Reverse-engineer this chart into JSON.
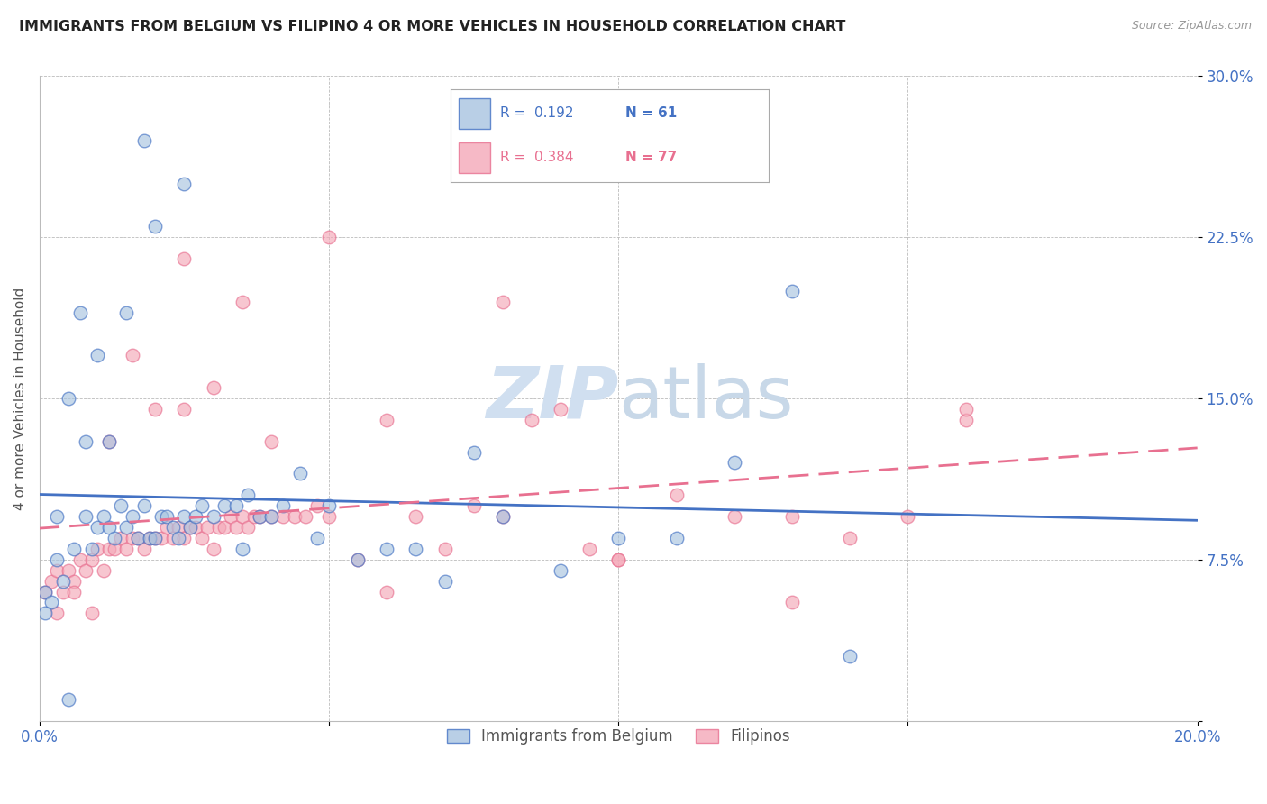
{
  "title": "IMMIGRANTS FROM BELGIUM VS FILIPINO 4 OR MORE VEHICLES IN HOUSEHOLD CORRELATION CHART",
  "source": "Source: ZipAtlas.com",
  "ylabel": "4 or more Vehicles in Household",
  "xlim": [
    0.0,
    0.2
  ],
  "ylim": [
    0.0,
    0.3
  ],
  "xticks": [
    0.0,
    0.05,
    0.1,
    0.15,
    0.2
  ],
  "yticks": [
    0.0,
    0.075,
    0.15,
    0.225,
    0.3
  ],
  "xticklabels": [
    "0.0%",
    "",
    "",
    "",
    "20.0%"
  ],
  "yticklabels": [
    "",
    "7.5%",
    "15.0%",
    "22.5%",
    "30.0%"
  ],
  "legend1_label": "Immigrants from Belgium",
  "legend2_label": "Filipinos",
  "R1": 0.192,
  "N1": 61,
  "R2": 0.384,
  "N2": 77,
  "color_blue": "#A8C4E0",
  "color_pink": "#F4A8B8",
  "color_blue_line": "#4472C4",
  "color_pink_line": "#E87090",
  "watermark_color": "#D0DFF0",
  "blue_intercept": 0.09,
  "blue_slope": 0.4,
  "pink_intercept": 0.072,
  "pink_slope": 0.55,
  "blue_x": [
    0.001,
    0.002,
    0.003,
    0.004,
    0.005,
    0.006,
    0.007,
    0.008,
    0.009,
    0.01,
    0.011,
    0.012,
    0.013,
    0.014,
    0.015,
    0.016,
    0.017,
    0.018,
    0.019,
    0.02,
    0.021,
    0.022,
    0.023,
    0.024,
    0.025,
    0.026,
    0.027,
    0.028,
    0.03,
    0.032,
    0.034,
    0.036,
    0.038,
    0.04,
    0.042,
    0.045,
    0.048,
    0.05,
    0.055,
    0.06,
    0.065,
    0.07,
    0.075,
    0.08,
    0.09,
    0.1,
    0.11,
    0.12,
    0.13,
    0.14,
    0.001,
    0.003,
    0.005,
    0.008,
    0.01,
    0.012,
    0.015,
    0.018,
    0.02,
    0.025,
    0.035
  ],
  "blue_y": [
    0.06,
    0.055,
    0.075,
    0.065,
    0.01,
    0.08,
    0.19,
    0.095,
    0.08,
    0.09,
    0.095,
    0.09,
    0.085,
    0.1,
    0.09,
    0.095,
    0.085,
    0.1,
    0.085,
    0.085,
    0.095,
    0.095,
    0.09,
    0.085,
    0.095,
    0.09,
    0.095,
    0.1,
    0.095,
    0.1,
    0.1,
    0.105,
    0.095,
    0.095,
    0.1,
    0.115,
    0.085,
    0.1,
    0.075,
    0.08,
    0.08,
    0.065,
    0.125,
    0.095,
    0.07,
    0.085,
    0.085,
    0.12,
    0.2,
    0.03,
    0.05,
    0.095,
    0.15,
    0.13,
    0.17,
    0.13,
    0.19,
    0.27,
    0.23,
    0.25,
    0.08
  ],
  "pink_x": [
    0.001,
    0.002,
    0.003,
    0.004,
    0.005,
    0.006,
    0.007,
    0.008,
    0.009,
    0.01,
    0.011,
    0.012,
    0.013,
    0.014,
    0.015,
    0.016,
    0.017,
    0.018,
    0.019,
    0.02,
    0.021,
    0.022,
    0.023,
    0.024,
    0.025,
    0.026,
    0.027,
    0.028,
    0.029,
    0.03,
    0.031,
    0.032,
    0.033,
    0.034,
    0.035,
    0.036,
    0.037,
    0.038,
    0.04,
    0.042,
    0.044,
    0.046,
    0.048,
    0.05,
    0.055,
    0.06,
    0.065,
    0.07,
    0.075,
    0.08,
    0.085,
    0.09,
    0.095,
    0.1,
    0.11,
    0.12,
    0.13,
    0.14,
    0.15,
    0.16,
    0.003,
    0.006,
    0.009,
    0.012,
    0.016,
    0.02,
    0.025,
    0.03,
    0.04,
    0.05,
    0.06,
    0.08,
    0.1,
    0.13,
    0.16,
    0.025,
    0.035
  ],
  "pink_y": [
    0.06,
    0.065,
    0.07,
    0.06,
    0.07,
    0.065,
    0.075,
    0.07,
    0.075,
    0.08,
    0.07,
    0.08,
    0.08,
    0.085,
    0.08,
    0.085,
    0.085,
    0.08,
    0.085,
    0.085,
    0.085,
    0.09,
    0.085,
    0.09,
    0.085,
    0.09,
    0.09,
    0.085,
    0.09,
    0.08,
    0.09,
    0.09,
    0.095,
    0.09,
    0.095,
    0.09,
    0.095,
    0.095,
    0.095,
    0.095,
    0.095,
    0.095,
    0.1,
    0.095,
    0.075,
    0.14,
    0.095,
    0.08,
    0.1,
    0.095,
    0.14,
    0.145,
    0.08,
    0.075,
    0.105,
    0.095,
    0.095,
    0.085,
    0.095,
    0.14,
    0.05,
    0.06,
    0.05,
    0.13,
    0.17,
    0.145,
    0.145,
    0.155,
    0.13,
    0.225,
    0.06,
    0.195,
    0.075,
    0.055,
    0.145,
    0.215,
    0.195
  ]
}
